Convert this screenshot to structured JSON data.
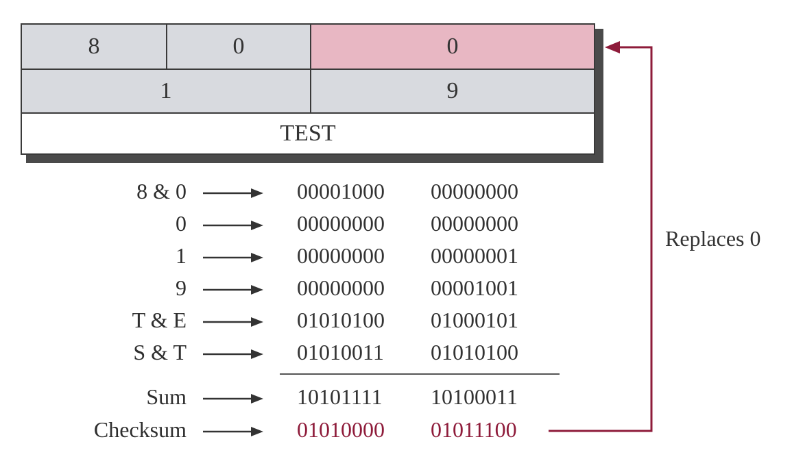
{
  "header": {
    "row1": [
      "8",
      "0",
      "0"
    ],
    "row2": [
      "1",
      "9"
    ],
    "row3": "TEST"
  },
  "rows": [
    {
      "label": "8 & 0",
      "w1": "00001000",
      "w2": "00000000"
    },
    {
      "label": "0",
      "w1": "00000000",
      "w2": "00000000"
    },
    {
      "label": "1",
      "w1": "00000000",
      "w2": "00000001"
    },
    {
      "label": "9",
      "w1": "00000000",
      "w2": "00001001"
    },
    {
      "label": "T & E",
      "w1": "01010100",
      "w2": "01000101"
    },
    {
      "label": "S & T",
      "w1": "01010011",
      "w2": "01010100"
    }
  ],
  "sum": {
    "label": "Sum",
    "w1": "10101111",
    "w2": "10100011"
  },
  "checksum": {
    "label": "Checksum",
    "w1": "01010000",
    "w2": "01011100"
  },
  "annotation": "Replaces 0",
  "colors": {
    "highlight": "#e8b7c3",
    "accent": "#8e1b3a",
    "cell": "#d8dadf"
  }
}
